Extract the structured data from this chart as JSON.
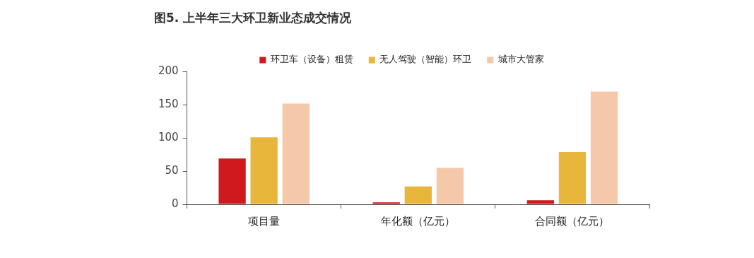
{
  "chart_data": {
    "type": "bar",
    "title": "图5. 上半年三大环卫新业态成交情况",
    "categories": [
      "项目量",
      "年化额（亿元）",
      "合同额（亿元）"
    ],
    "series": [
      {
        "name": "环卫车（设备）租赁",
        "color": "#d0191f",
        "values": [
          69,
          3,
          6
        ]
      },
      {
        "name": "无人驾驶（智能）环卫",
        "color": "#e8b63b",
        "values": [
          101,
          27,
          79
        ]
      },
      {
        "name": "城市大管家",
        "color": "#f6c8aa",
        "values": [
          152,
          55,
          170
        ]
      }
    ],
    "ylim": [
      0,
      200
    ],
    "yticks": [
      0,
      50,
      100,
      150,
      200
    ],
    "grid": false,
    "legend": "top"
  }
}
